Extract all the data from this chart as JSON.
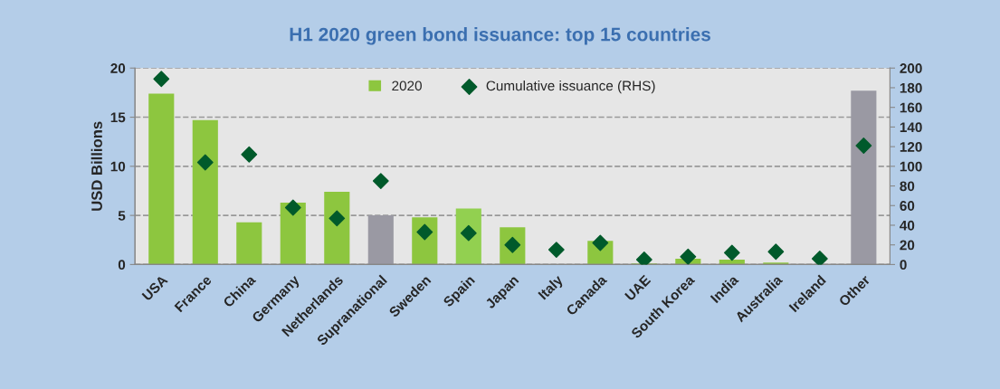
{
  "chart_data": {
    "type": "bar",
    "title": "H1 2020 green bond issuance: top 15 countries",
    "ylabel": "USD Billions",
    "categories": [
      "USA",
      "France",
      "China",
      "Germany",
      "Netherlands",
      "Supranational",
      "Sweden",
      "Spain",
      "Japan",
      "Italy",
      "Canada",
      "UAE",
      "South Korea",
      "India",
      "Australia",
      "Ireland",
      "Other"
    ],
    "series": [
      {
        "name": "2020",
        "color": "#8dc63f",
        "colors": [
          "#8dc63f",
          "#8dc63f",
          "#8dc63f",
          "#8dc63f",
          "#8dc63f",
          "#9a99a3",
          "#8dc63f",
          "#92d050",
          "#8dc63f",
          "#8dc63f",
          "#8dc63f",
          "#8dc63f",
          "#8dc63f",
          "#8dc63f",
          "#8dc63f",
          "#8dc63f",
          "#9a99a3"
        ],
        "values": [
          17.4,
          14.7,
          4.3,
          6.3,
          7.4,
          5.0,
          4.8,
          5.7,
          3.8,
          null,
          2.4,
          0.1,
          0.6,
          0.5,
          0.2,
          null,
          17.7
        ]
      },
      {
        "name": "Cumulative issuance (RHS)",
        "type": "scatter",
        "axis": "y2",
        "color": "#005a2b",
        "marker": "diamond",
        "values": [
          189,
          104,
          112,
          58,
          47,
          85,
          33,
          32,
          20,
          15,
          22,
          5,
          8,
          12,
          13,
          6,
          121
        ]
      }
    ],
    "ylim": [
      0,
      20
    ],
    "yticks": [
      0,
      5,
      10,
      15,
      20
    ],
    "y2lim": [
      0,
      200
    ],
    "y2ticks": [
      0,
      20,
      40,
      60,
      80,
      100,
      120,
      140,
      160,
      180,
      200
    ],
    "grid": "y",
    "legend": "top"
  }
}
